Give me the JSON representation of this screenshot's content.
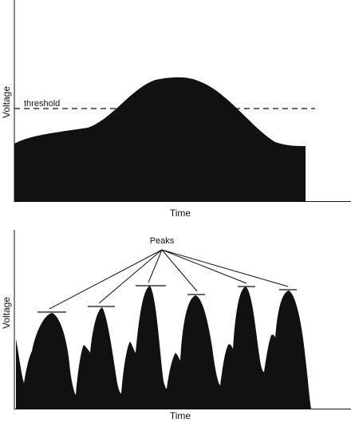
{
  "top_panel": {
    "x_label": "Time",
    "y_label": "Voltage",
    "threshold_label": "threshold"
  },
  "bottom_panel": {
    "x_label": "Time",
    "y_label": "Voltage",
    "peaks_label": "Peaks",
    "peak_count": 6
  },
  "colors": {
    "fill": "#111111",
    "axis": "#111111",
    "background": "#ffffff"
  }
}
